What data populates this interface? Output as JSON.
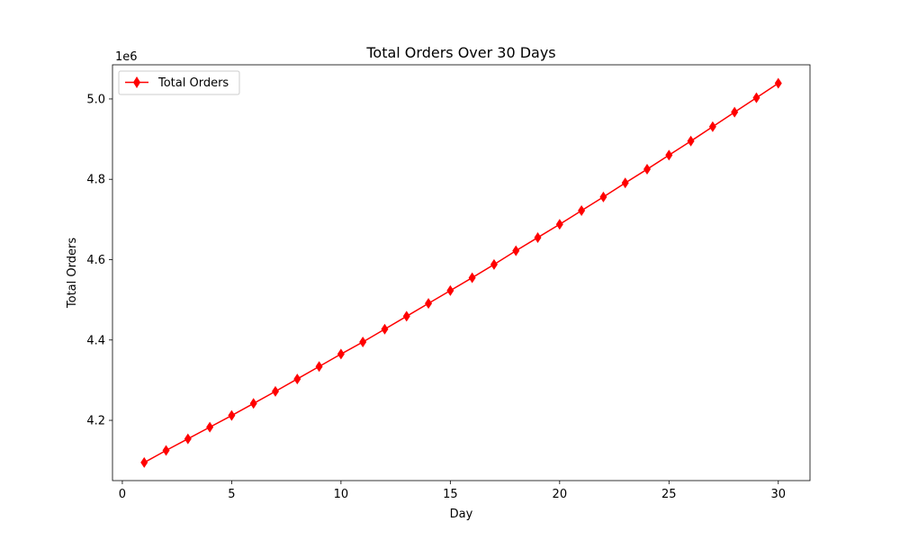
{
  "chart_data": {
    "type": "line",
    "title": "Total Orders Over 30 Days",
    "xlabel": "Day",
    "ylabel": "Total Orders",
    "y_offset_label": "1e6",
    "y_scale": 1000000,
    "xlim": [
      -0.45,
      31.45
    ],
    "ylim": [
      4050000,
      5085000
    ],
    "x_ticks": [
      0,
      5,
      10,
      15,
      20,
      25,
      30
    ],
    "y_ticks": [
      4200000,
      4400000,
      4600000,
      4800000,
      5000000
    ],
    "y_tick_labels": [
      "4.2",
      "4.4",
      "4.6",
      "4.8",
      "5.0"
    ],
    "grid": false,
    "legend_position": "top-left",
    "series": [
      {
        "name": "Total Orders",
        "color": "#ff0000",
        "marker": "diamond",
        "x": [
          1,
          2,
          3,
          4,
          5,
          6,
          7,
          8,
          9,
          10,
          11,
          12,
          13,
          14,
          15,
          16,
          17,
          18,
          19,
          20,
          21,
          22,
          23,
          24,
          25,
          26,
          27,
          28,
          29,
          30
        ],
        "values": [
          4095000,
          4125000,
          4154000,
          4183000,
          4212000,
          4242000,
          4272000,
          4303000,
          4334000,
          4365000,
          4395000,
          4427000,
          4459000,
          4491000,
          4523000,
          4555000,
          4588000,
          4622000,
          4655000,
          4688000,
          4722000,
          4756000,
          4791000,
          4825000,
          4860000,
          4895000,
          4931000,
          4967000,
          5003000,
          5039000
        ]
      }
    ]
  }
}
